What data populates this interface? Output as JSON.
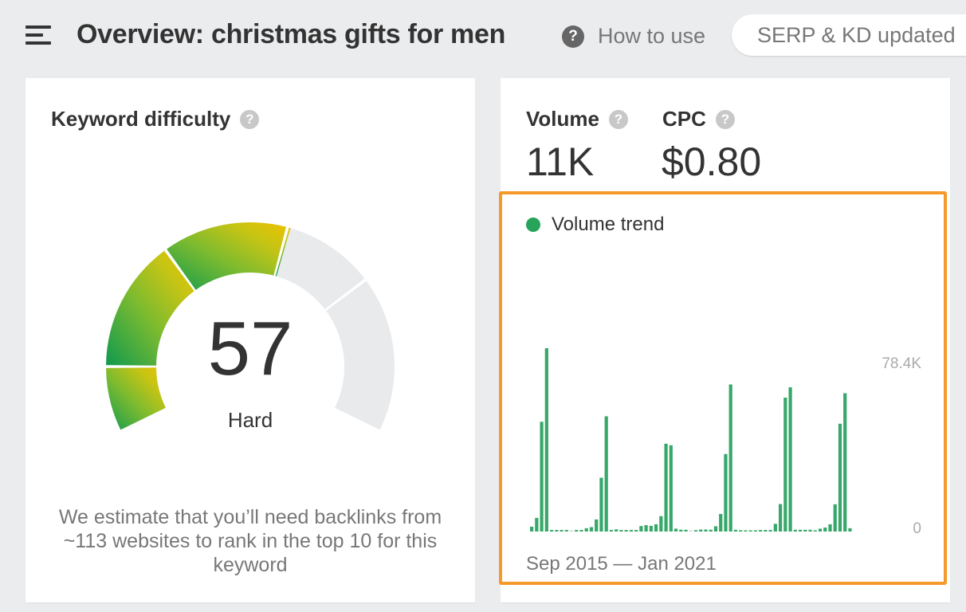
{
  "header": {
    "title": "Overview: christmas gifts for men",
    "how_to_use": "How to use",
    "serp_status": "SERP & KD updated"
  },
  "keyword_difficulty": {
    "heading": "Keyword difficulty",
    "score": "57",
    "score_value": 57,
    "rating": "Hard",
    "description": "We estimate that you’ll need backlinks from ~113 websites to rank in the top 10 for this keyword",
    "colors": {
      "start": "#0f9a4f",
      "mid": "#a7c12a",
      "end": "#e8c100",
      "empty": "#e9eaeb"
    }
  },
  "metrics": {
    "volume_label": "Volume",
    "volume_value": "11K",
    "cpc_label": "CPC",
    "cpc_value": "$0.80"
  },
  "chart_data": {
    "type": "bar",
    "title": "Volume trend",
    "x_range_label": "Sep 2015 — Jan 2021",
    "x_start": "Sep 2015",
    "x_end": "Jan 2021",
    "y_tick_labels": [
      "0",
      "78.4K"
    ],
    "y_ticks": [
      0,
      78400
    ],
    "ylim": [
      0,
      83500
    ],
    "bar_color": "#37a76a",
    "highlight_color": "#f5992b",
    "values": [
      2200,
      6200,
      50000,
      83500,
      700,
      700,
      700,
      700,
      0,
      700,
      700,
      1500,
      2000,
      5500,
      24500,
      52500,
      700,
      1000,
      700,
      700,
      700,
      700,
      2500,
      2900,
      2600,
      3300,
      7000,
      40000,
      39300,
      1300,
      800,
      800,
      0,
      600,
      900,
      900,
      800,
      2400,
      8000,
      35300,
      67000,
      800,
      600,
      400,
      400,
      400,
      700,
      700,
      700,
      3500,
      12500,
      61000,
      65700,
      800,
      800,
      800,
      800,
      400,
      1300,
      1800,
      3300,
      12400,
      49100,
      63000,
      1500
    ]
  }
}
